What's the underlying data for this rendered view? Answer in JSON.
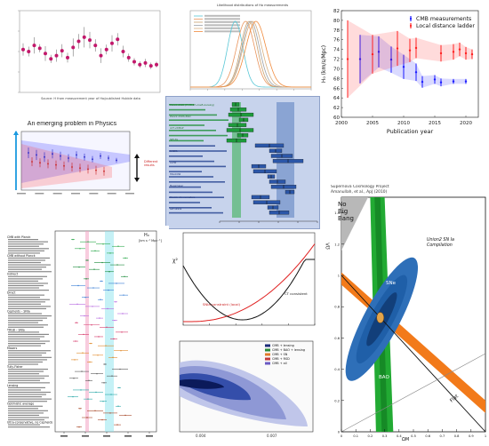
{
  "panels": {
    "hubble_scatter": {
      "xlabel": "Source: H from measurement year of Ho/published Hubble data"
    },
    "gaussians": {
      "title": "Likelihood distributions of Ho measurements"
    },
    "tension_title": "An emerging problem in Physics",
    "tension_side_label": "Different results",
    "cmb_vs_local": {
      "legend": [
        "CMB measurements",
        "Local distance ladder"
      ]
    },
    "forest_compilation": {
      "labels": [
        "Planck 2018 (TT,TE,EE+lowE+lensing)",
        "Planck 2018+BAO",
        "ACT+WMAP",
        "SPT-3G",
        "SH0ES",
        "CCHP",
        "H0LiCOW",
        "Megamaser",
        "Cosmic chronometers",
        "GW sirens"
      ]
    },
    "h0_whisker": {
      "title": "H₀",
      "subtitle": "[km s⁻¹ Mpc⁻¹]",
      "groups": [
        "CMB with Planck",
        "CMB without Planck",
        "Indirect",
        "Direct",
        "Cepheids – SNIa",
        "TRGB – SNIa",
        "Masers",
        "Tully-Fisher",
        "Lensing",
        "Optimistic average",
        "Ultra-conservative, no Cepheids"
      ]
    },
    "chi2": {
      "ylabel": "χ²",
      "curve_label_red": "SNIa constraint (local)",
      "curve_label_black": "CT consistent"
    },
    "contours": {
      "xticks": [
        "0.004",
        "0.007"
      ],
      "legend": [
        "CMB + lensing",
        "CMB + BAO + lensing",
        "CMB + SN",
        "CMB + RSD",
        "CMB + all"
      ]
    },
    "supernova_cosmology": {
      "title": "Supernova Cosmology Project",
      "subtitle": "Amanullah, et al., ApJ (2010)",
      "no_bang": "No Big Bang",
      "union_label": "Union2 SN Ia Compilation",
      "sne": "SNe",
      "bao": "BAO",
      "cmb": "CMB",
      "flat": "Flat",
      "xlabel": "ΩM",
      "ylabel": "ΩΛ"
    }
  },
  "chart_data": [
    {
      "type": "scatter",
      "title": "",
      "xlabel": "Source: H from measurement year of Ho/published Hubble data",
      "x": [
        1,
        2,
        3,
        4,
        5,
        6,
        7,
        8,
        9,
        10,
        11,
        12,
        13,
        14,
        15,
        16,
        17,
        18,
        19,
        20,
        21,
        22,
        23,
        24,
        25
      ],
      "y": [
        70.5,
        70.0,
        71.5,
        70.8,
        69.5,
        68.2,
        69.0,
        70.2,
        68.5,
        71.0,
        72.5,
        73.5,
        72.8,
        71.5,
        69.0,
        70.5,
        72.0,
        73.0,
        70.0,
        68.5,
        67.5,
        66.8,
        67.2,
        66.5,
        66.8
      ],
      "yerr": [
        1.5,
        1.2,
        2.0,
        1.0,
        1.8,
        1.0,
        1.5,
        1.6,
        1.2,
        2.2,
        1.8,
        2.5,
        2.0,
        1.5,
        1.8,
        1.2,
        2.0,
        1.5,
        1.4,
        1.0,
        0.9,
        0.8,
        1.0,
        0.8,
        0.7
      ],
      "ylim": [
        60,
        80
      ]
    },
    {
      "type": "line",
      "title": "Likelihood distributions of Ho measurements",
      "series": [
        {
          "mu": 63.0,
          "sigma": 2.2,
          "color": "#58c7d6"
        },
        {
          "mu": 66.0,
          "sigma": 2.6,
          "color": "#e9945c"
        },
        {
          "mu": 67.0,
          "sigma": 2.4,
          "color": "#c8a06e"
        },
        {
          "mu": 67.5,
          "sigma": 2.5,
          "color": "#9aa0a8"
        },
        {
          "mu": 68.0,
          "sigma": 2.7,
          "color": "#d9b080"
        },
        {
          "mu": 69.0,
          "sigma": 2.9,
          "color": "#f08a3c"
        }
      ],
      "xlim": [
        50,
        85
      ]
    },
    {
      "type": "area",
      "title": "",
      "xlabel": "Publication year",
      "ylabel": "H₀ (km/s/Mpc)",
      "xlim": [
        2000,
        2022
      ],
      "ylim": [
        60,
        82
      ],
      "xticks": [
        2000,
        2005,
        2010,
        2015,
        2020
      ],
      "yticks": [
        60,
        62,
        64,
        66,
        68,
        70,
        72,
        74,
        76,
        78,
        80,
        82
      ],
      "series": [
        {
          "name": "CMB measurements",
          "color": "#1a1aff",
          "x": [
            2003,
            2006,
            2008,
            2010,
            2012,
            2013,
            2015,
            2016,
            2018,
            2020
          ],
          "y": [
            72,
            73.5,
            71.9,
            70.4,
            69.3,
            67.3,
            67.8,
            67.2,
            67.4,
            67.4
          ],
          "yerr": [
            5,
            3.2,
            2.7,
            2.5,
            1.8,
            1.2,
            0.9,
            0.8,
            0.5,
            0.5
          ]
        },
        {
          "name": "Local distance ladder",
          "color": "#ff2020",
          "x": [
            2001,
            2005,
            2009,
            2011,
            2012,
            2016,
            2018,
            2019,
            2020,
            2021
          ],
          "y": [
            72,
            73,
            74.2,
            73.8,
            74.3,
            73.2,
            73.5,
            74.0,
            73.2,
            73.0
          ],
          "yerr": [
            8,
            4,
            3.6,
            2.4,
            2.1,
            1.7,
            1.6,
            1.4,
            1.3,
            1.0
          ]
        }
      ]
    },
    {
      "type": "line",
      "title": "",
      "ylabel": "χ²",
      "series": [
        {
          "name": "SNIa constraint (local)",
          "color": "#e02020"
        },
        {
          "name": "CT consistent",
          "color": "#111111"
        }
      ]
    },
    {
      "type": "scatter",
      "title": "Supernova Cosmology Project",
      "xlabel": "ΩM",
      "ylabel": "ΩΛ",
      "xlim": [
        0.0,
        1.0
      ],
      "ylim": [
        0.0,
        1.5
      ],
      "xticks": [
        0.0,
        0.1,
        0.2,
        0.3,
        0.4,
        0.5,
        0.6,
        0.7,
        0.8,
        0.9,
        1.0
      ],
      "yticks": [
        0.0,
        0.2,
        0.4,
        0.6,
        0.8,
        1.0,
        1.2,
        1.4
      ]
    }
  ],
  "colors": {
    "cmb_blue": "#1f3fff",
    "local_red": "#ff3030",
    "sne_blue": "#1f5fa8",
    "bao_green": "#22aa33",
    "cmb_orange": "#f27a1a",
    "magenta": "#c2186b"
  }
}
